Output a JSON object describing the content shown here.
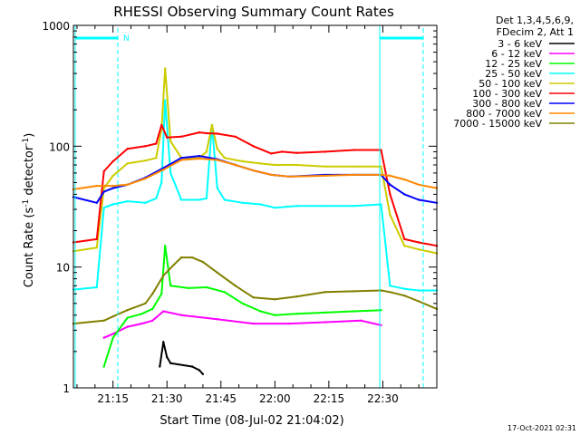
{
  "chart_data": {
    "type": "line",
    "title": "RHESSI Observing Summary Count Rates",
    "xlabel": "Start Time (08-Jul-02 21:04:02)",
    "ylabel_main": "Count Rate (s",
    "ylabel_sup1": "-1",
    "ylabel_mid": " detector",
    "ylabel_sup2": "-1",
    "ylabel_end": ")",
    "yscale": "log",
    "ylim": [
      1,
      1000
    ],
    "xlim_minutes": [
      0,
      101
    ],
    "x_ticks": [
      {
        "label": "21:15",
        "minute": 11
      },
      {
        "label": "21:30",
        "minute": 26
      },
      {
        "label": "21:45",
        "minute": 41
      },
      {
        "label": "22:00",
        "minute": 56
      },
      {
        "label": "22:15",
        "minute": 71
      },
      {
        "label": "22:30",
        "minute": 86
      }
    ],
    "y_ticks": [
      {
        "label": "1",
        "value": 1
      },
      {
        "label": "10",
        "value": 10
      },
      {
        "label": "100",
        "value": 100
      },
      {
        "label": "1000",
        "value": 1000
      }
    ],
    "night_flag_label": "N",
    "legend_header": [
      "Det 1,3,4,5,6,9,",
      "FDecim 2, Att 1"
    ],
    "timestamp": "17-Oct-2021 02:31",
    "series": [
      {
        "name": "3 - 6 keV",
        "color": "#000000",
        "x": [
          24,
          25,
          26,
          27,
          33,
          35,
          36
        ],
        "y": [
          1.5,
          2.4,
          1.8,
          1.6,
          1.5,
          1.4,
          1.3
        ]
      },
      {
        "name": "6 - 12 keV",
        "color": "#ff00ff",
        "x": [
          8.5,
          11,
          15,
          19,
          22,
          25,
          30,
          40,
          50,
          60,
          70,
          80,
          85.5
        ],
        "y": [
          2.6,
          2.8,
          3.2,
          3.4,
          3.6,
          4.3,
          4.0,
          3.7,
          3.4,
          3.4,
          3.5,
          3.6,
          3.3
        ]
      },
      {
        "name": "12 - 25 keV",
        "color": "#00ff00",
        "x": [
          8.5,
          11,
          15,
          19,
          22,
          24.5,
          25.5,
          27,
          32,
          37,
          42,
          47,
          52,
          56,
          62,
          70,
          78,
          85.5
        ],
        "y": [
          1.5,
          2.6,
          3.8,
          4.1,
          4.5,
          6.0,
          15,
          7.0,
          6.7,
          6.8,
          6.2,
          5.0,
          4.3,
          4.0,
          4.1,
          4.2,
          4.3,
          4.4
        ]
      },
      {
        "name": "25 - 50 keV",
        "color": "#00ffff",
        "x": [
          0,
          6.5,
          8.5,
          11,
          15,
          20,
          23,
          24.5,
          25.5,
          27,
          30,
          35,
          37,
          38.5,
          40,
          42,
          47,
          52,
          56,
          62,
          70,
          78,
          85.5,
          88,
          92,
          96,
          101
        ],
        "y": [
          6.5,
          6.8,
          31,
          33,
          35,
          34,
          37,
          50,
          240,
          60,
          36,
          36,
          37,
          150,
          45,
          36,
          34,
          33,
          31,
          32,
          32,
          32,
          33,
          7.0,
          6.6,
          6.4,
          6.4
        ]
      },
      {
        "name": "50 - 100 keV",
        "color": "#cccc00",
        "x": [
          0,
          6.5,
          8.5,
          11,
          15,
          20,
          23,
          24.5,
          25.5,
          27,
          30,
          35,
          37,
          38.5,
          40,
          42,
          47,
          52,
          56,
          62,
          70,
          78,
          85.5,
          88,
          92,
          96,
          101
        ],
        "y": [
          13.5,
          14.5,
          45,
          57,
          72,
          76,
          80,
          140,
          440,
          110,
          80,
          80,
          90,
          150,
          95,
          80,
          75,
          72,
          70,
          70,
          68,
          68,
          68,
          27,
          15,
          14,
          13
        ]
      },
      {
        "name": "100 - 300 keV",
        "color": "#ff0000",
        "x": [
          0,
          6.5,
          8.5,
          11,
          15,
          20,
          23,
          24.5,
          26,
          30,
          35,
          37,
          40,
          45,
          50,
          55,
          58,
          62,
          70,
          78,
          85.5,
          88,
          92,
          96,
          101
        ],
        "y": [
          16,
          17,
          62,
          75,
          95,
          100,
          105,
          150,
          118,
          120,
          130,
          128,
          127,
          120,
          100,
          87,
          90,
          88,
          90,
          93,
          93,
          40,
          17,
          16,
          15
        ]
      },
      {
        "name": "300 - 800 keV",
        "color": "#0000ff",
        "x": [
          0,
          6.5,
          8.5,
          11,
          15,
          20,
          25,
          30,
          35,
          40,
          45,
          50,
          55,
          60,
          70,
          78,
          85.5,
          88,
          92,
          96,
          101
        ],
        "y": [
          38,
          34,
          42,
          45,
          48,
          55,
          66,
          80,
          83,
          78,
          70,
          63,
          58,
          56,
          58,
          58,
          58,
          48,
          40,
          36,
          34
        ]
      },
      {
        "name": "800 - 7000 keV",
        "color": "#ff8800",
        "x": [
          0,
          6.5,
          8.5,
          11,
          15,
          20,
          25,
          30,
          35,
          40,
          45,
          50,
          55,
          60,
          70,
          78,
          85.5,
          88,
          92,
          96,
          101
        ],
        "y": [
          44,
          47,
          47,
          47,
          48,
          54,
          64,
          77,
          79,
          77,
          70,
          63,
          58,
          56,
          57,
          58,
          58,
          57,
          53,
          48,
          45
        ]
      },
      {
        "name": "7000 - 15000 keV",
        "color": "#808000",
        "x": [
          0,
          8.5,
          11,
          15,
          20,
          22,
          25,
          28,
          30,
          33,
          36,
          40,
          45,
          50,
          56,
          62,
          70,
          78,
          85.5,
          88,
          92,
          96,
          101
        ],
        "y": [
          3.4,
          3.6,
          3.9,
          4.4,
          5.0,
          6.0,
          8.5,
          10.5,
          12.0,
          12.0,
          11.0,
          9.0,
          7.0,
          5.6,
          5.4,
          5.7,
          6.2,
          6.3,
          6.4,
          6.2,
          5.8,
          5.2,
          4.5
        ]
      }
    ]
  }
}
